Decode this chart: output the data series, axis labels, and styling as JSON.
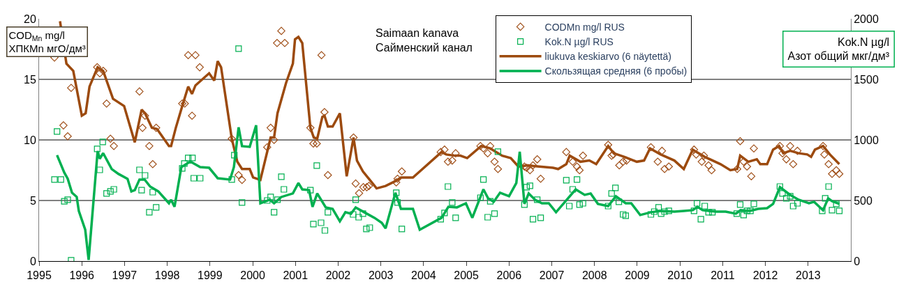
{
  "chart_data": {
    "type": "line",
    "title": "Saimaan kanava\nСайменский канал",
    "ylabel": "COD$_{Mn}$ mg/l\nХПКMn мгО/дм³",
    "y2label": "Kok.N µg/l\nАзот общий мкг/дм³",
    "xlim": [
      1995,
      2014
    ],
    "xticks": [
      1995,
      1996,
      1997,
      1998,
      1999,
      2000,
      2001,
      2002,
      2003,
      2004,
      2005,
      2006,
      2007,
      2008,
      2009,
      2010,
      2011,
      2012,
      2013
    ],
    "ylim": [
      0,
      20
    ],
    "yticks": [
      0,
      5,
      10,
      15,
      20
    ],
    "y2lim": [
      0,
      2000
    ],
    "y2ticks": [
      0,
      500,
      1000,
      1500,
      2000
    ],
    "grid": "y",
    "legend": "top",
    "series": [
      {
        "name": "CODMn mg/l RUS",
        "type": "scatter",
        "marker": "diamond",
        "color": "#a0501a",
        "x": [
          1995.36,
          1995.57,
          1995.67,
          1995.75,
          1996.36,
          1996.42,
          1996.5,
          1996.58,
          1996.67,
          1996.75,
          1997.35,
          1997.42,
          1997.48,
          1997.58,
          1997.66,
          1997.74,
          1998.35,
          1998.41,
          1998.49,
          1998.66,
          1998.58,
          1998.76,
          1999.51,
          1999.67,
          1999.75,
          2000.42,
          2000.34,
          2000.5,
          2000.57,
          2000.67,
          2000.75,
          2001.35,
          2001.42,
          2001.5,
          2001.61,
          2001.68,
          2001.76,
          2002.36,
          2002.41,
          2002.49,
          2002.59,
          2002.67,
          2002.72,
          2003.36,
          2003.39,
          2003.49,
          2004.4,
          2004.49,
          2004.57,
          2004.67,
          2004.75,
          2005.33,
          2005.4,
          2005.5,
          2005.56,
          2005.66,
          2005.74,
          2006.36,
          2006.41,
          2006.49,
          2006.56,
          2006.66,
          2006.74,
          2007.34,
          2007.49,
          2007.59,
          2007.65,
          2007.73,
          2008.32,
          2008.4,
          2008.44,
          2008.58,
          2008.67,
          2008.75,
          2009.32,
          2009.48,
          2009.58,
          2009.64,
          2009.74,
          2010.33,
          2010.38,
          2010.51,
          2010.56,
          2010.67,
          2010.74,
          2011.34,
          2011.41,
          2011.49,
          2011.57,
          2011.67,
          2011.73,
          2012.34,
          2012.4,
          2012.49,
          2012.58,
          2012.65,
          2012.75,
          2013.35,
          2013.38,
          2013.48,
          2013.56,
          2013.66,
          2013.73
        ],
        "values": [
          16.8,
          11.2,
          10.3,
          14.3,
          16.0,
          15.5,
          15.7,
          13.0,
          10.1,
          9.5,
          14.0,
          11.0,
          12.0,
          9.5,
          8.0,
          11.0,
          13.0,
          13.0,
          17.0,
          17.0,
          12.0,
          16.0,
          10.1,
          7.1,
          6.7,
          11.0,
          9.4,
          10.0,
          18.0,
          19.0,
          18.0,
          11.0,
          9.7,
          9.7,
          17.0,
          12.3,
          7.1,
          10.2,
          6.4,
          5.6,
          6.1,
          6.1,
          6.2,
          6.5,
          6.8,
          7.4,
          9.0,
          9.2,
          8.2,
          8.3,
          8.9,
          9.5,
          9.3,
          8.9,
          9.5,
          8.2,
          7.6,
          7.8,
          7.7,
          7.5,
          7.9,
          8.4,
          6.8,
          9.0,
          8.2,
          7.8,
          7.5,
          8.7,
          9.6,
          8.7,
          8.8,
          7.9,
          8.2,
          8.3,
          9.4,
          8.2,
          9.1,
          7.6,
          7.8,
          9.2,
          8.8,
          8.2,
          8.7,
          7.9,
          7.5,
          7.6,
          9.9,
          8.2,
          7.8,
          7.0,
          9.3,
          9.5,
          8.9,
          8.4,
          9.5,
          8.0,
          9.1,
          9.5,
          8.8,
          8.0,
          7.2,
          7.5,
          7.2
        ]
      },
      {
        "name": "Kok.N µg/l RUS",
        "type": "scatter",
        "marker": "square",
        "axis": "y2",
        "color": "#00b050",
        "x": [
          1995.42,
          1995.36,
          1995.51,
          1995.59,
          1995.67,
          1995.75,
          1996.36,
          1996.49,
          1996.42,
          1996.58,
          1996.67,
          1996.75,
          1997.35,
          1997.48,
          1997.4,
          1997.66,
          1997.58,
          1997.74,
          1998.35,
          1998.4,
          1998.49,
          1998.59,
          1998.62,
          1998.77,
          1999.67,
          1999.51,
          1999.57,
          1999.75,
          2000.34,
          2000.42,
          2000.58,
          2000.5,
          2000.67,
          2000.73,
          2001.35,
          2001.5,
          2001.42,
          2001.6,
          2001.69,
          2001.76,
          2002.41,
          2002.35,
          2002.48,
          2002.58,
          2002.66,
          2002.74,
          2003.36,
          2003.39,
          2003.49,
          2004.4,
          2004.49,
          2004.57,
          2004.67,
          2004.75,
          2005.33,
          2005.4,
          2005.56,
          2005.5,
          2005.66,
          2005.74,
          2006.36,
          2006.41,
          2006.49,
          2006.56,
          2006.66,
          2006.74,
          2007.34,
          2007.59,
          2007.49,
          2007.41,
          2007.65,
          2007.73,
          2008.32,
          2008.4,
          2008.49,
          2008.57,
          2008.67,
          2008.73,
          2009.32,
          2009.4,
          2009.5,
          2009.56,
          2009.64,
          2009.74,
          2010.33,
          2010.4,
          2010.49,
          2010.58,
          2010.67,
          2010.76,
          2011.33,
          2011.41,
          2011.49,
          2011.57,
          2011.65,
          2011.73,
          2012.34,
          2012.4,
          2012.49,
          2012.58,
          2012.65,
          2012.75,
          2013.33,
          2013.4,
          2013.48,
          2013.56,
          2013.66,
          2013.73
        ],
        "values": [
          1070,
          673,
          673,
          494,
          506,
          6,
          926,
          983,
          753,
          558,
          575,
          592,
          753,
          707,
          586,
          569,
          403,
          443,
          765,
          805,
          851,
          851,
          684,
          684,
          1754,
          673,
          874,
          483,
          500,
          529,
          506,
          403,
          696,
          592,
          586,
          788,
          305,
          316,
          253,
          403,
          506,
          385,
          362,
          391,
          265,
          276,
          564,
          483,
          265,
          345,
          397,
          615,
          483,
          357,
          523,
          673,
          494,
          362,
          391,
          903,
          466,
          610,
          621,
          345,
          506,
          357,
          667,
          673,
          592,
          454,
          466,
          477,
          454,
          558,
          604,
          489,
          385,
          374,
          385,
          408,
          443,
          391,
          408,
          414,
          414,
          477,
          345,
          454,
          403,
          403,
          391,
          466,
          380,
          414,
          414,
          472,
          615,
          558,
          518,
          535,
          454,
          477,
          414,
          518,
          615,
          420,
          472,
          414
        ]
      },
      {
        "name": "liukuva keskiarvo (6 näytettä)",
        "color": "#9c4a0e",
        "x": [
          1995.49,
          1995.64,
          1995.8,
          1996.0,
          1996.09,
          1996.18,
          1996.37,
          1996.5,
          1996.73,
          1996.99,
          1997.24,
          1997.4,
          1997.48,
          1997.64,
          1997.76,
          1998.04,
          1998.09,
          1998.2,
          1998.36,
          1998.49,
          1998.58,
          1998.66,
          1998.98,
          1999.1,
          1999.18,
          1999.26,
          1999.51,
          1999.64,
          1999.75,
          1999.93,
          2000.01,
          2000.18,
          2000.42,
          2000.5,
          2000.58,
          2000.78,
          2000.94,
          2000.99,
          2001.07,
          2001.16,
          2001.35,
          2001.43,
          2001.51,
          2001.63,
          2001.68,
          2001.76,
          2001.87,
          2002.04,
          2002.2,
          2002.36,
          2002.44,
          2002.58,
          2002.74,
          2002.9,
          2003.11,
          2003.34,
          2003.47,
          2003.75,
          2004.42,
          2004.53,
          2004.73,
          2004.86,
          2005.02,
          2005.35,
          2005.56,
          2005.84,
          2006.04,
          2006.22,
          2006.44,
          2006.71,
          2007.03,
          2007.15,
          2007.34,
          2007.42,
          2007.67,
          2007.88,
          2008.04,
          2008.32,
          2008.45,
          2008.7,
          2008.99,
          2009.16,
          2009.3,
          2009.55,
          2009.87,
          2010.09,
          2010.3,
          2010.58,
          2010.95,
          2011.18,
          2011.34,
          2011.41,
          2011.6,
          2011.8,
          2011.88,
          2012.04,
          2012.18,
          2012.32,
          2012.42,
          2012.58,
          2012.78,
          2012.98,
          2013.07,
          2013.16,
          2013.35,
          2013.51,
          2013.73
        ],
        "values": [
          19.8,
          16.3,
          15.7,
          12.0,
          12.2,
          14.4,
          16.0,
          15.7,
          13.4,
          12.8,
          9.8,
          12.5,
          12.2,
          11.0,
          10.9,
          9.5,
          9.5,
          11.0,
          12.9,
          14.4,
          13.8,
          14.5,
          15.5,
          14.9,
          16.5,
          16.0,
          10.1,
          8.2,
          7.6,
          7.6,
          6.9,
          6.7,
          10.2,
          10.2,
          12.2,
          14.7,
          16.3,
          18.3,
          18.5,
          18.0,
          11.0,
          10.2,
          10.1,
          11.9,
          12.0,
          11.1,
          11.1,
          12.2,
          7.0,
          10.2,
          8.3,
          7.4,
          6.7,
          6.0,
          6.2,
          6.6,
          6.9,
          6.9,
          9.0,
          8.8,
          8.7,
          8.7,
          8.5,
          9.5,
          9.3,
          8.7,
          8.5,
          7.8,
          7.9,
          7.8,
          7.7,
          7.6,
          8.0,
          8.7,
          8.2,
          8.3,
          8.0,
          9.5,
          8.9,
          8.6,
          8.2,
          8.3,
          9.3,
          8.8,
          8.3,
          7.6,
          9.2,
          8.6,
          8.0,
          7.5,
          7.6,
          8.7,
          8.2,
          8.4,
          8.0,
          8.0,
          9.2,
          9.5,
          8.9,
          9.1,
          8.9,
          8.8,
          8.6,
          9.2,
          9.5,
          8.8,
          8.0
        ]
      },
      {
        "name": "Скользящая средняя (6 пробы)",
        "axis": "y2",
        "color": "#00b050",
        "x": [
          1995.42,
          1995.59,
          1995.67,
          1995.77,
          1995.88,
          1995.93,
          1996.08,
          1996.16,
          1996.37,
          1996.42,
          1996.5,
          1996.7,
          1996.86,
          1997.07,
          1997.16,
          1997.24,
          1997.35,
          1997.47,
          1997.6,
          1997.79,
          1998.04,
          1998.09,
          1998.17,
          1998.33,
          1998.54,
          1998.77,
          1998.98,
          1999.18,
          1999.47,
          1999.56,
          1999.67,
          1999.75,
          1999.93,
          2000.08,
          2000.18,
          2000.4,
          2000.5,
          2000.67,
          2000.94,
          2001.07,
          2001.16,
          2001.32,
          2001.4,
          2001.51,
          2001.71,
          2001.87,
          2002.04,
          2002.17,
          2002.3,
          2002.41,
          2002.61,
          2002.85,
          2003.02,
          2003.11,
          2003.34,
          2003.47,
          2003.75,
          2003.91,
          2004.42,
          2004.58,
          2004.78,
          2004.99,
          2005.14,
          2005.4,
          2005.51,
          2005.64,
          2005.79,
          2006.0,
          2006.17,
          2006.25,
          2006.36,
          2006.46,
          2006.61,
          2006.77,
          2006.93,
          2007.1,
          2007.31,
          2007.56,
          2007.77,
          2007.91,
          2008.08,
          2008.32,
          2008.5,
          2008.73,
          2008.86,
          2009.07,
          2009.32,
          2009.55,
          2009.87,
          2010.09,
          2010.3,
          2010.41,
          2010.53,
          2010.85,
          2011.07,
          2011.31,
          2011.42,
          2011.64,
          2011.83,
          2012.04,
          2012.18,
          2012.34,
          2012.58,
          2012.78,
          2013.02,
          2013.14,
          2013.35,
          2013.47,
          2013.56,
          2013.73
        ],
        "values": [
          874,
          730,
          680,
          564,
          530,
          414,
          259,
          10,
          908,
          845,
          891,
          759,
          719,
          679,
          575,
          586,
          673,
          673,
          615,
          575,
          477,
          506,
          448,
          776,
          822,
          776,
          770,
          684,
          673,
          776,
          1104,
          949,
          943,
          1121,
          477,
          506,
          477,
          529,
          558,
          644,
          592,
          586,
          448,
          558,
          443,
          431,
          328,
          403,
          391,
          443,
          403,
          357,
          316,
          270,
          564,
          431,
          431,
          259,
          357,
          448,
          443,
          477,
          357,
          592,
          518,
          489,
          564,
          535,
          644,
          903,
          472,
          558,
          506,
          477,
          477,
          403,
          489,
          592,
          546,
          558,
          472,
          454,
          535,
          477,
          477,
          380,
          403,
          414,
          408,
          414,
          420,
          448,
          420,
          408,
          408,
          391,
          420,
          414,
          431,
          437,
          472,
          610,
          546,
          506,
          477,
          489,
          420,
          518,
          495,
          472
        ]
      }
    ]
  }
}
